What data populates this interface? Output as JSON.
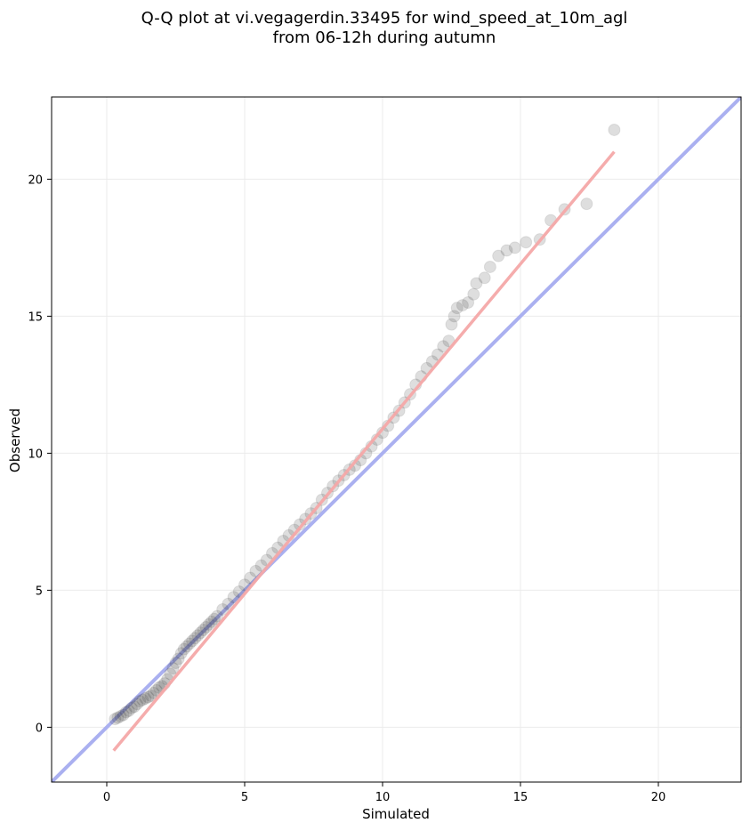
{
  "chart_data": {
    "type": "scatter",
    "title": "Q-Q plot at vi.vegagerdin.33495 for wind_speed_at_10m_agl",
    "subtitle": "from 06-12h during autumn",
    "xlabel": "Simulated",
    "ylabel": "Observed",
    "xlim": [
      -2,
      23
    ],
    "ylim": [
      -2,
      23
    ],
    "xticks": [
      0,
      5,
      10,
      15,
      20
    ],
    "yticks": [
      0,
      5,
      10,
      15,
      20
    ],
    "grid": true,
    "colors": {
      "points": "#333333",
      "identity_line": "#aab0f0",
      "fit_line": "#f4a8a8",
      "grid": "#ebebeb"
    },
    "identity_line": {
      "x": [
        -2,
        23
      ],
      "y": [
        -2,
        23
      ]
    },
    "fit_line": {
      "x": [
        0.25,
        18.4
      ],
      "y": [
        -0.85,
        21.0
      ]
    },
    "points": {
      "x": [
        0.3,
        0.4,
        0.5,
        0.6,
        0.7,
        0.8,
        0.9,
        1.0,
        1.1,
        1.2,
        1.3,
        1.4,
        1.5,
        1.6,
        1.7,
        1.8,
        1.9,
        2.0,
        2.1,
        2.2,
        2.3,
        2.4,
        2.5,
        2.6,
        2.7,
        2.8,
        2.9,
        3.0,
        3.1,
        3.2,
        3.3,
        3.4,
        3.5,
        3.6,
        3.7,
        3.8,
        3.9,
        4.0,
        4.2,
        4.4,
        4.6,
        4.8,
        5.0,
        5.2,
        5.4,
        5.6,
        5.8,
        6.0,
        6.2,
        6.4,
        6.6,
        6.8,
        7.0,
        7.2,
        7.4,
        7.6,
        7.8,
        8.0,
        8.2,
        8.4,
        8.6,
        8.8,
        9.0,
        9.2,
        9.4,
        9.6,
        9.8,
        10.0,
        10.2,
        10.4,
        10.6,
        10.8,
        11.0,
        11.2,
        11.4,
        11.6,
        11.8,
        12.0,
        12.2,
        12.4,
        12.5,
        12.6,
        12.7,
        12.9,
        13.1,
        13.3,
        13.4,
        13.7,
        13.9,
        14.2,
        14.5,
        14.8,
        15.2,
        15.7,
        16.1,
        16.6,
        17.4,
        18.4
      ],
      "y": [
        0.3,
        0.35,
        0.4,
        0.45,
        0.55,
        0.6,
        0.7,
        0.75,
        0.85,
        0.95,
        1.0,
        1.05,
        1.1,
        1.15,
        1.25,
        1.35,
        1.45,
        1.5,
        1.6,
        1.75,
        1.95,
        2.15,
        2.35,
        2.5,
        2.7,
        2.85,
        2.95,
        3.05,
        3.15,
        3.25,
        3.35,
        3.45,
        3.55,
        3.65,
        3.75,
        3.85,
        3.95,
        4.05,
        4.3,
        4.5,
        4.75,
        4.95,
        5.2,
        5.45,
        5.7,
        5.9,
        6.1,
        6.35,
        6.55,
        6.8,
        7.0,
        7.2,
        7.4,
        7.6,
        7.8,
        8.0,
        8.3,
        8.55,
        8.8,
        9.0,
        9.2,
        9.4,
        9.55,
        9.75,
        10.0,
        10.25,
        10.5,
        10.75,
        11.0,
        11.3,
        11.55,
        11.85,
        12.15,
        12.5,
        12.8,
        13.1,
        13.35,
        13.6,
        13.9,
        14.1,
        14.7,
        15.0,
        15.3,
        15.4,
        15.5,
        15.8,
        16.2,
        16.4,
        16.8,
        17.2,
        17.4,
        17.5,
        17.7,
        17.8,
        18.5,
        18.9,
        19.1,
        21.8
      ]
    }
  }
}
